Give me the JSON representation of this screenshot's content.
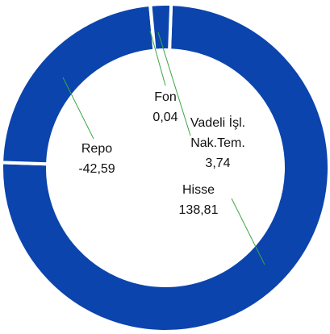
{
  "chart_data": {
    "type": "donut",
    "categories": [
      "Hisse",
      "Repo",
      "Fon",
      "Vadeli İşl. Nak.Tem."
    ],
    "values": [
      138.81,
      -42.59,
      0.04,
      3.74
    ],
    "value_labels": [
      "138,81",
      "-42,59",
      "0,04",
      "3,74"
    ],
    "color": "#0b44ad"
  }
}
